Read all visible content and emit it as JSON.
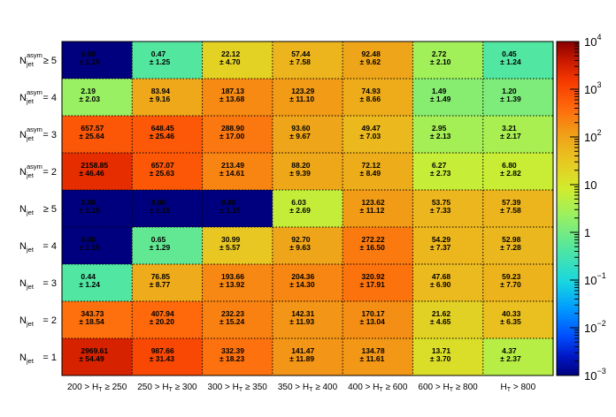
{
  "chart_data": {
    "type": "heatmap",
    "x_categories": [
      {
        "main": "200 > H",
        "sub": "T",
        "tail": " ≥ 250"
      },
      {
        "main": "250 > H",
        "sub": "T",
        "tail": " ≥ 300"
      },
      {
        "main": "300 > H",
        "sub": "T",
        "tail": " ≥ 350"
      },
      {
        "main": "350 > H",
        "sub": "T",
        "tail": " ≥ 400"
      },
      {
        "main": "400 > H",
        "sub": "T",
        "tail": " ≥ 600"
      },
      {
        "main": "600 > H",
        "sub": "T",
        "tail": " ≥ 800"
      },
      {
        "main": "H",
        "sub": "T",
        "tail": " > 800"
      }
    ],
    "y_categories": [
      {
        "main": "N",
        "sub": "jet",
        "sup": "asym",
        "tail": " ≥ 5"
      },
      {
        "main": "N",
        "sub": "jet",
        "sup": "asym",
        "tail": " = 4"
      },
      {
        "main": "N",
        "sub": "jet",
        "sup": "asym",
        "tail": " = 3"
      },
      {
        "main": "N",
        "sub": "jet",
        "sup": "asym",
        "tail": " = 2"
      },
      {
        "main": "N",
        "sub": "jet",
        "sup": "",
        "tail": " ≥ 5"
      },
      {
        "main": "N",
        "sub": "jet",
        "sup": "",
        "tail": " = 4"
      },
      {
        "main": "N",
        "sub": "jet",
        "sup": "",
        "tail": " = 3"
      },
      {
        "main": "N",
        "sub": "jet",
        "sup": "",
        "tail": " = 2"
      },
      {
        "main": "N",
        "sub": "jet",
        "sup": "",
        "tail": " = 1"
      }
    ],
    "values": [
      [
        "0.00",
        "0.47",
        "22.12",
        "57.44",
        "92.48",
        "2.72",
        "0.45"
      ],
      [
        "2.19",
        "83.94",
        "187.13",
        "123.29",
        "74.93",
        "1.49",
        "1.20"
      ],
      [
        "657.57",
        "648.45",
        "288.90",
        "93.60",
        "49.47",
        "2.95",
        "3.21"
      ],
      [
        "2158.85",
        "657.07",
        "213.49",
        "88.20",
        "72.12",
        "6.27",
        "6.80"
      ],
      [
        "0.00",
        "0.00",
        "0.00",
        "6.03",
        "123.62",
        "53.75",
        "57.39"
      ],
      [
        "0.00",
        "0.65",
        "30.99",
        "92.70",
        "272.22",
        "54.29",
        "52.98"
      ],
      [
        "0.44",
        "76.85",
        "193.66",
        "204.36",
        "320.92",
        "47.68",
        "59.23"
      ],
      [
        "343.73",
        "407.94",
        "232.23",
        "142.31",
        "170.17",
        "21.62",
        "40.33"
      ],
      [
        "2969.61",
        "987.66",
        "332.39",
        "141.47",
        "134.78",
        "13.71",
        "4.37"
      ]
    ],
    "errors": [
      [
        "± 1.15",
        "± 1.25",
        "± 4.70",
        "± 7.58",
        "± 9.62",
        "± 2.10",
        "± 1.24"
      ],
      [
        "± 2.03",
        "± 9.16",
        "± 13.68",
        "± 11.10",
        "± 8.66",
        "± 1.49",
        "± 1.39"
      ],
      [
        "± 25.64",
        "± 25.46",
        "± 17.00",
        "± 9.67",
        "± 7.03",
        "± 2.13",
        "± 2.17"
      ],
      [
        "± 46.46",
        "± 25.63",
        "± 14.61",
        "± 9.39",
        "± 8.49",
        "± 2.73",
        "± 2.82"
      ],
      [
        "± 1.15",
        "± 1.15",
        "± 1.15",
        "± 2.69",
        "± 11.12",
        "± 7.33",
        "± 7.58"
      ],
      [
        "± 1.15",
        "± 1.29",
        "± 5.57",
        "± 9.63",
        "± 16.50",
        "± 7.37",
        "± 7.28"
      ],
      [
        "± 1.24",
        "± 8.77",
        "± 13.92",
        "± 14.30",
        "± 17.91",
        "± 6.90",
        "± 7.70"
      ],
      [
        "± 18.54",
        "± 20.20",
        "± 15.24",
        "± 11.93",
        "± 13.04",
        "± 4.65",
        "± 6.35"
      ],
      [
        "± 54.49",
        "± 31.43",
        "± 18.23",
        "± 11.89",
        "± 11.61",
        "± 3.70",
        "± 2.37"
      ]
    ],
    "z_scale": "log",
    "z_range": [
      0.001,
      10000
    ],
    "z_ticks": [
      {
        "value": 10000,
        "base": "10",
        "exp": "4"
      },
      {
        "value": 1000,
        "base": "10",
        "exp": "3"
      },
      {
        "value": 100,
        "base": "10",
        "exp": "2"
      },
      {
        "value": 10,
        "base": "10",
        "exp": ""
      },
      {
        "value": 1,
        "base": "1",
        "exp": ""
      },
      {
        "value": 0.1,
        "base": "10",
        "exp": "−1"
      },
      {
        "value": 0.01,
        "base": "10",
        "exp": "−2"
      },
      {
        "value": 0.001,
        "base": "10",
        "exp": "−3"
      }
    ],
    "empty_cell_color": "#00007f",
    "grid": true
  }
}
